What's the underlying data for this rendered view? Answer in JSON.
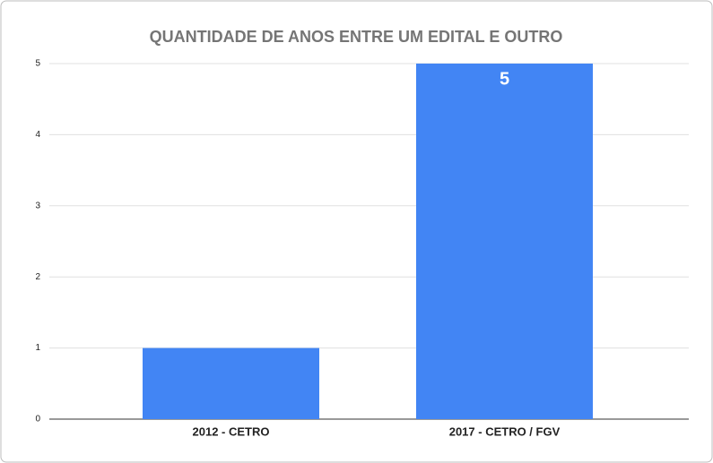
{
  "chart_data": {
    "type": "bar",
    "title": "QUANTIDADE DE ANOS ENTRE UM EDITAL E OUTRO",
    "categories": [
      "2012 - CETRO",
      "2017 - CETRO / FGV"
    ],
    "values": [
      1,
      5
    ],
    "value_labels": [
      null,
      "5"
    ],
    "color": "#4285f4",
    "ylim": [
      0,
      5
    ],
    "yticks": [
      0,
      1,
      2,
      3,
      4,
      5
    ],
    "grid": true
  }
}
